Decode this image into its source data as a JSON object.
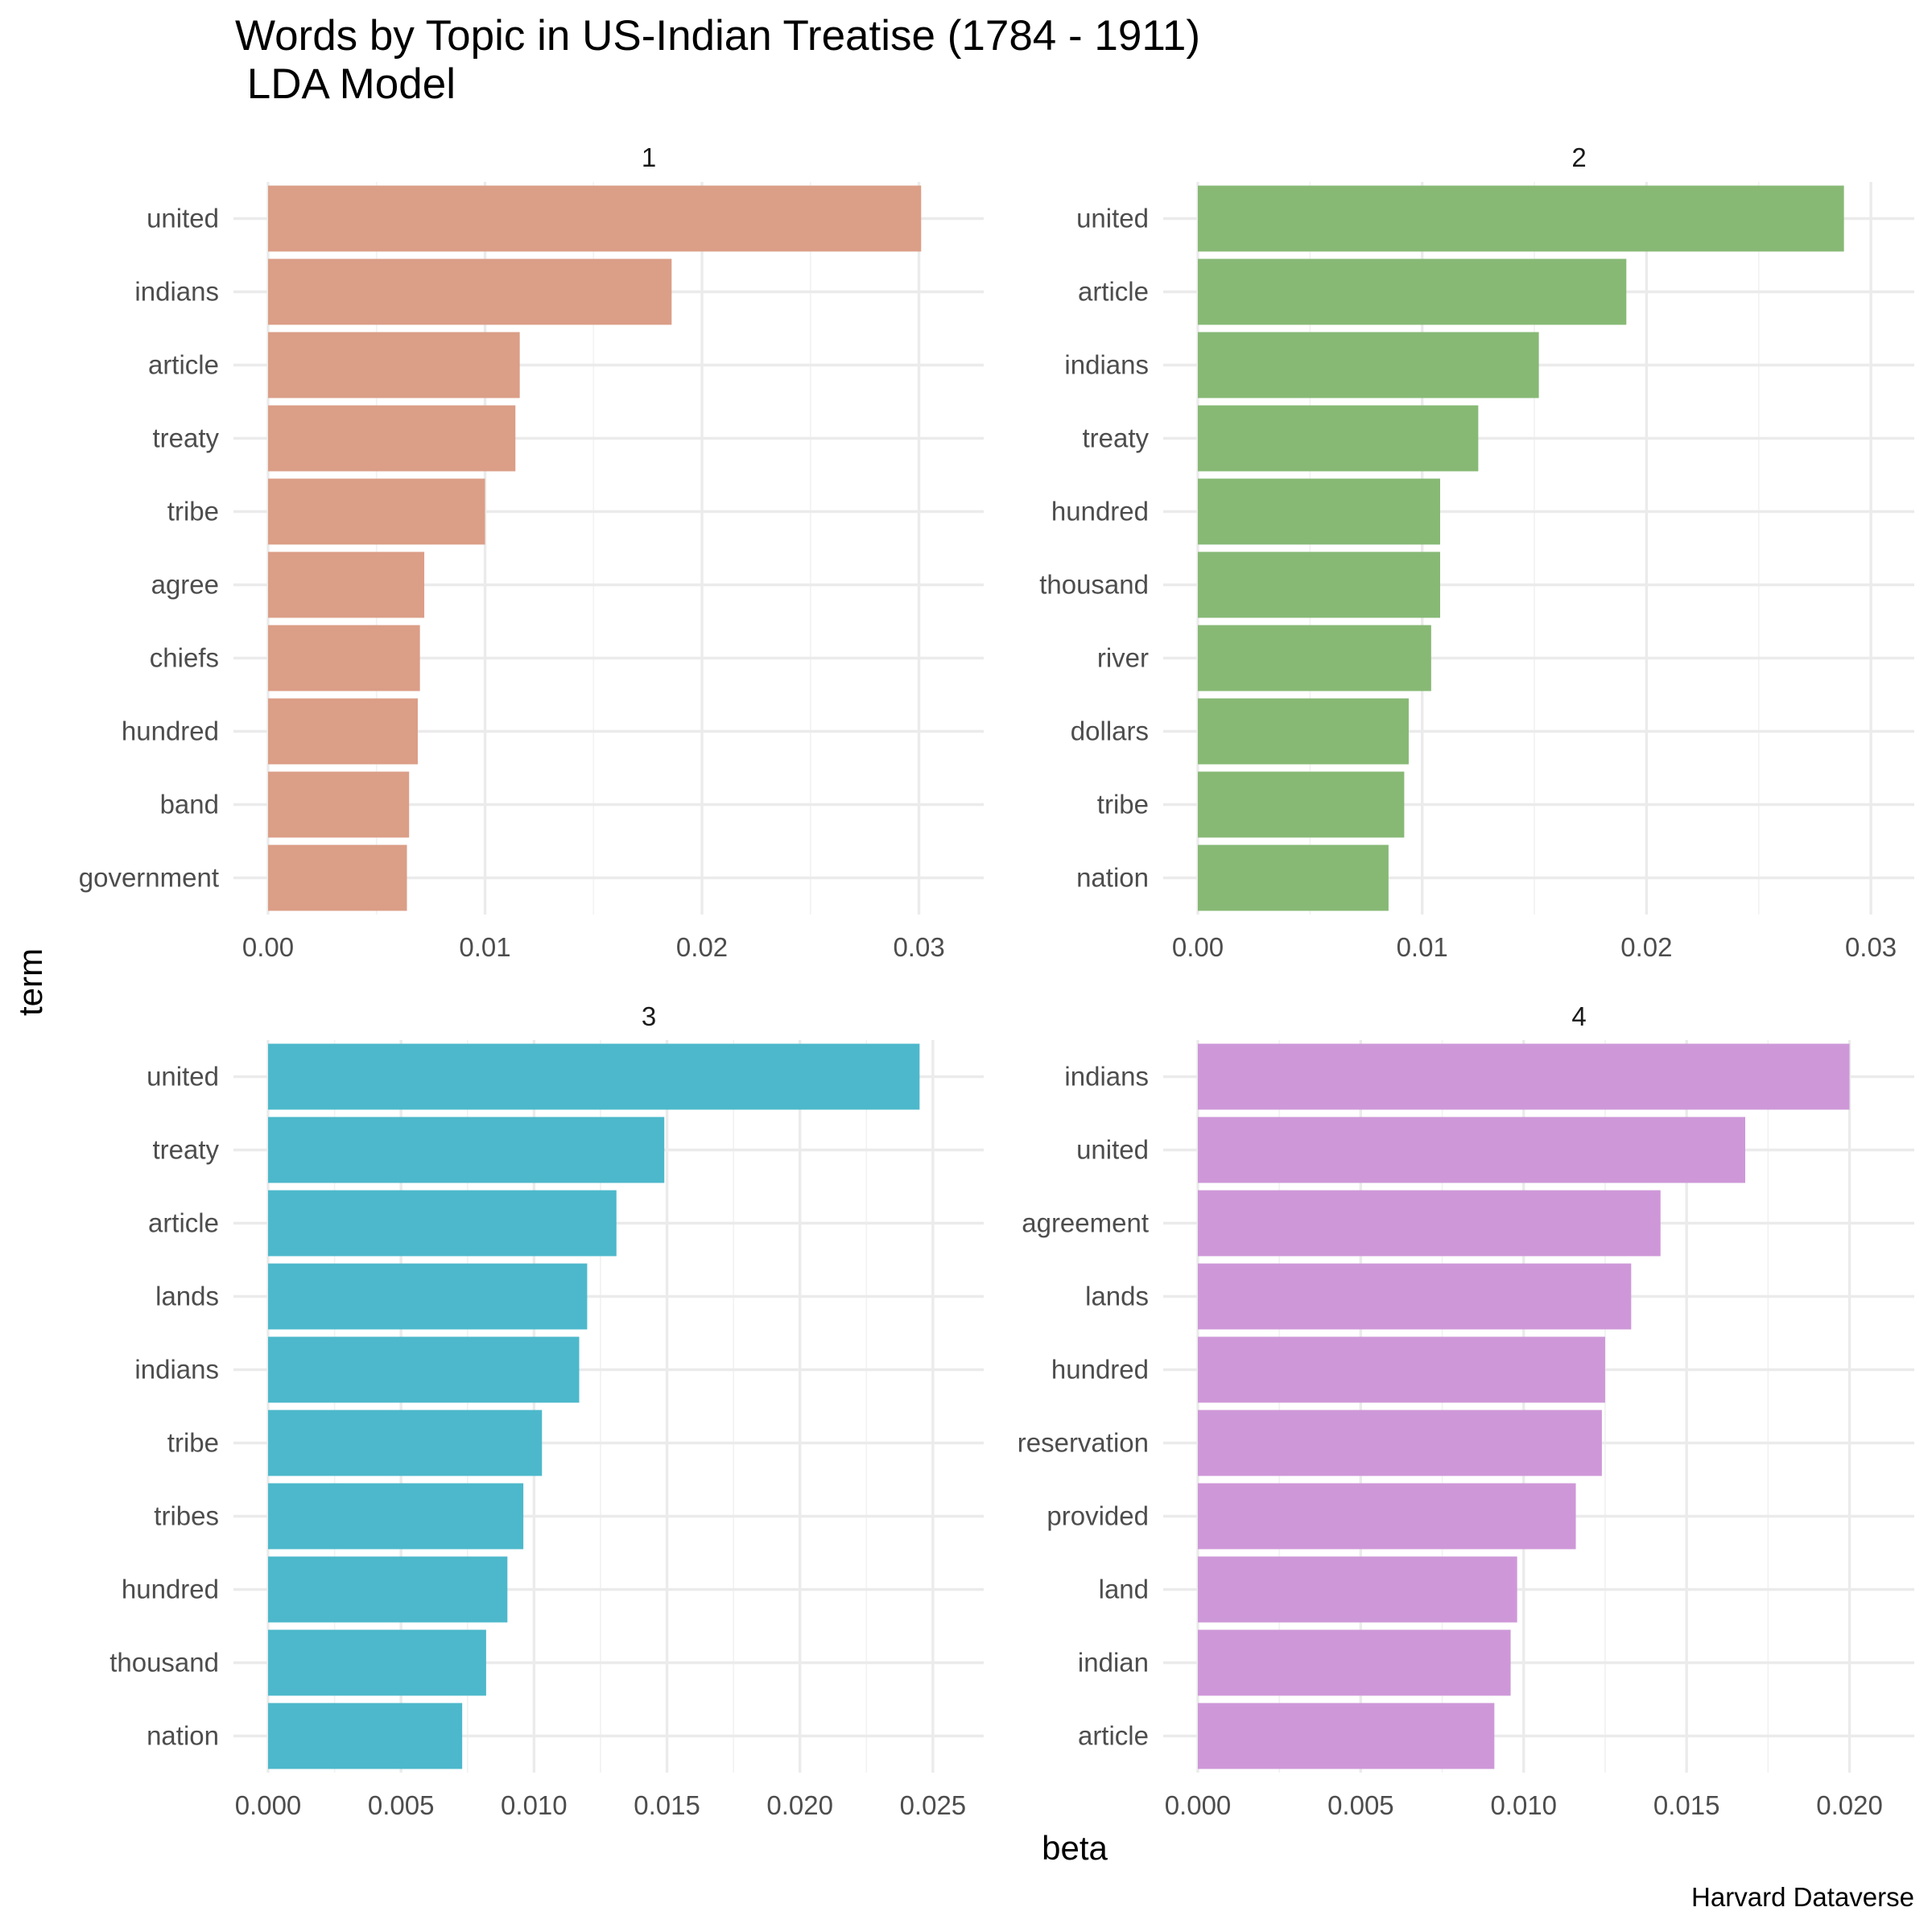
{
  "title": "Words by Topic in US-Indian Treatise (1784 - 1911)",
  "subtitle": " LDA Model",
  "caption": "Harvard Dataverse",
  "chart_data": {
    "type": "bar",
    "orientation": "horizontal",
    "facet_layout": "2x2",
    "xlabel": "beta",
    "ylabel": "term",
    "grid": true,
    "legend": "none",
    "panels": [
      {
        "label": "1",
        "color": "#DB9E87",
        "xlim": [
          0,
          0.0315
        ],
        "xticks": [
          0.0,
          0.01,
          0.02,
          0.03
        ],
        "xtick_labels": [
          "0.00",
          "0.01",
          "0.02",
          "0.03"
        ],
        "terms": [
          "united",
          "indians",
          "article",
          "treaty",
          "tribe",
          "agree",
          "chiefs",
          "hundred",
          "band",
          "government"
        ],
        "values": [
          0.0301,
          0.0186,
          0.0116,
          0.0114,
          0.01,
          0.0072,
          0.007,
          0.0069,
          0.0065,
          0.0064
        ]
      },
      {
        "label": "2",
        "color": "#87B975",
        "xlim": [
          0,
          0.0305
        ],
        "xticks": [
          0.0,
          0.01,
          0.02,
          0.03
        ],
        "xtick_labels": [
          "0.00",
          "0.01",
          "0.02",
          "0.03"
        ],
        "terms": [
          "united",
          "article",
          "indians",
          "treaty",
          "hundred",
          "thousand",
          "river",
          "dollars",
          "tribe",
          "nation"
        ],
        "values": [
          0.0288,
          0.0191,
          0.0152,
          0.0125,
          0.0108,
          0.0108,
          0.0104,
          0.0094,
          0.0092,
          0.0085
        ]
      },
      {
        "label": "3",
        "color": "#4DB8CB",
        "xlim": [
          0,
          0.0257
        ],
        "xticks": [
          0.0,
          0.005,
          0.01,
          0.015,
          0.02,
          0.025
        ],
        "xtick_labels": [
          "0.000",
          "0.005",
          "0.010",
          "0.015",
          "0.020",
          "0.025"
        ],
        "terms": [
          "united",
          "treaty",
          "article",
          "lands",
          "indians",
          "tribe",
          "tribes",
          "hundred",
          "thousand",
          "nation"
        ],
        "values": [
          0.0245,
          0.0149,
          0.0131,
          0.012,
          0.0117,
          0.0103,
          0.0096,
          0.009,
          0.0082,
          0.0073
        ]
      },
      {
        "label": "4",
        "color": "#CE98D8",
        "xlim": [
          0,
          0.021
        ],
        "xticks": [
          0.0,
          0.005,
          0.01,
          0.015,
          0.02
        ],
        "xtick_labels": [
          "0.000",
          "0.005",
          "0.010",
          "0.015",
          "0.020"
        ],
        "terms": [
          "indians",
          "united",
          "agreement",
          "lands",
          "hundred",
          "reservation",
          "provided",
          "land",
          "indian",
          "article"
        ],
        "values": [
          0.02,
          0.0168,
          0.0142,
          0.0133,
          0.0125,
          0.0124,
          0.0116,
          0.0098,
          0.0096,
          0.0091
        ]
      }
    ]
  }
}
